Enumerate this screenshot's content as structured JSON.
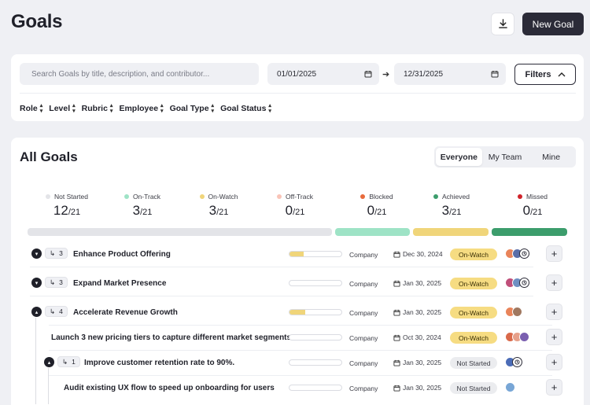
{
  "header": {
    "title": "Goals",
    "new_goal_label": "New Goal"
  },
  "filters": {
    "search_placeholder": "Search Goals by title, description, and contributor...",
    "start_date": "01/01/2025",
    "end_date": "12/31/2025",
    "filters_label": "Filters",
    "tags": [
      "Role",
      "Level",
      "Rubric",
      "Employee",
      "Goal Type",
      "Goal Status"
    ]
  },
  "section": {
    "title": "All Goals",
    "views": [
      "Everyone",
      "My Team",
      "Mine"
    ],
    "active_view": "Everyone"
  },
  "stats": [
    {
      "label": "Not Started",
      "value": "12",
      "total": "/21",
      "color": "#e3e4e8"
    },
    {
      "label": "On-Track",
      "value": "3",
      "total": "/21",
      "color": "#9ee3c6"
    },
    {
      "label": "On-Watch",
      "value": "3",
      "total": "/21",
      "color": "#f0d57a"
    },
    {
      "label": "Off-Track",
      "value": "0",
      "total": "/21",
      "color": "#f9c4b8"
    },
    {
      "label": "Blocked",
      "value": "0",
      "total": "/21",
      "color": "#e86a3c"
    },
    {
      "label": "Achieved",
      "value": "3",
      "total": "/21",
      "color": "#3c9d6c"
    },
    {
      "label": "Missed",
      "value": "0",
      "total": "/21",
      "color": "#d0232a"
    }
  ],
  "goals": [
    {
      "title": "Enhance Product Offering",
      "count": "3",
      "owner": "Company",
      "due": "Dec 30, 2024",
      "status": "On-Watch",
      "progress": 0.28
    },
    {
      "title": "Expand Market Presence",
      "count": "3",
      "owner": "Company",
      "due": "Jan 30, 2025",
      "status": "On-Watch",
      "progress": 0.0
    },
    {
      "title": "Accelerate Revenue Growth",
      "count": "4",
      "owner": "Company",
      "due": "Jan 30, 2025",
      "status": "On-Watch",
      "progress": 0.3
    },
    {
      "title": "Launch 3 new pricing tiers to capture different market segments.",
      "count": "",
      "owner": "Company",
      "due": "Oct 30, 2024",
      "status": "On-Watch",
      "progress": 0.0
    },
    {
      "title": "Improve customer retention rate to 90%.",
      "count": "1",
      "owner": "Company",
      "due": "Jan 30, 2025",
      "status": "Not Started",
      "progress": 0.0
    },
    {
      "title": "Audit existing UX flow to speed up onboarding for users",
      "count": "",
      "owner": "Company",
      "due": "Jan 30, 2025",
      "status": "Not Started",
      "progress": 0.0
    }
  ]
}
